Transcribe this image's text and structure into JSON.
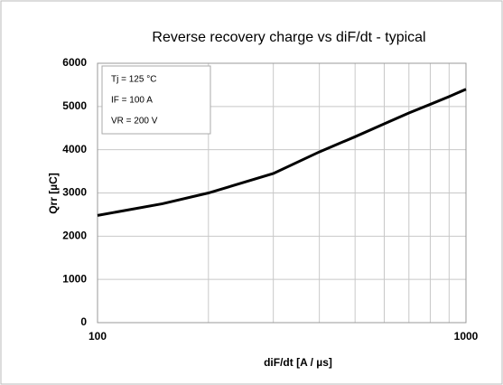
{
  "chart_data": {
    "type": "line",
    "title": "Reverse recovery charge vs diF/dt - typical",
    "x_label": "diF/dt [A / µs]",
    "y_label": "Qrr [µC]",
    "annotations": [
      "Tj = 125 °C",
      "IF = 100 A",
      "VR = 200 V"
    ],
    "x": [
      100,
      150,
      200,
      300,
      400,
      500,
      600,
      700,
      800,
      900,
      1000
    ],
    "series": [
      {
        "name": "Qrr",
        "color": "#000000",
        "values": [
          2480,
          2750,
          3000,
          3450,
          3950,
          4300,
          4600,
          4850,
          5050,
          5230,
          5400
        ]
      }
    ],
    "xlim": [
      100,
      1000
    ],
    "xticks": [
      100,
      1000
    ],
    "xgrid_minor": [
      200,
      300,
      400,
      500,
      600,
      700,
      800,
      900
    ],
    "x_log": true,
    "ylim": [
      0,
      6000
    ],
    "yticks": [
      0,
      1000,
      2000,
      3000,
      4000,
      5000,
      6000
    ],
    "grid": true
  }
}
